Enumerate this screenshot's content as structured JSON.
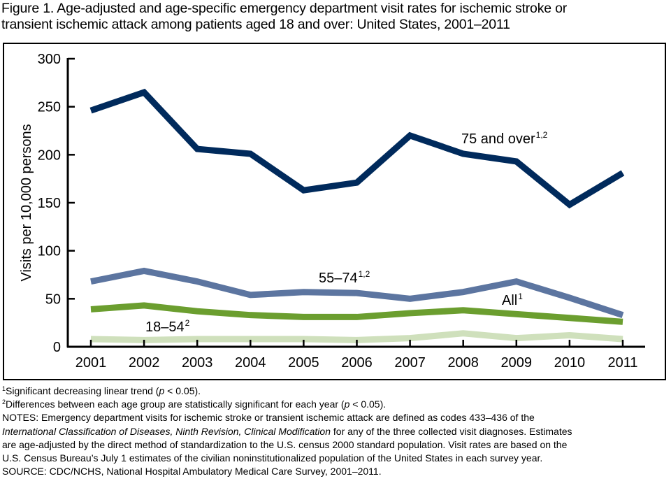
{
  "title": {
    "line1": "Figure 1. Age-adjusted and age-specific emergency department visit rates for ischemic stroke or",
    "line2": "transient ischemic attack among patients aged 18 and over: United States, 2001–2011"
  },
  "chart_data": {
    "type": "line",
    "title": "Figure 1. Age-adjusted and age-specific emergency department visit rates for ischemic stroke or transient ischemic attack among patients aged 18 and over: United States, 2001–2011",
    "xlabel": "",
    "ylabel": "Visits per 10,000 persons",
    "x": [
      "2001",
      "2002",
      "2003",
      "2004",
      "2005",
      "2006",
      "2007",
      "2008",
      "2009",
      "2010",
      "2011"
    ],
    "ylim": [
      0,
      300
    ],
    "yticks": [
      0,
      50,
      100,
      150,
      200,
      250,
      300
    ],
    "grid": false,
    "legend": "inline labels",
    "series": [
      {
        "name": "75 and over",
        "label": "75 and over",
        "label_sup": "1,2",
        "color": "#002A5C",
        "values": [
          246,
          265,
          206,
          201,
          163,
          171,
          220,
          201,
          193,
          148,
          181
        ]
      },
      {
        "name": "55–74",
        "label": "55–74",
        "label_sup": "1,2",
        "color": "#5C75A0",
        "values": [
          68,
          79,
          68,
          54,
          57,
          56,
          50,
          57,
          68,
          51,
          33
        ]
      },
      {
        "name": "All",
        "label": "All",
        "label_sup": "1",
        "color": "#6B9E2F",
        "values": [
          39,
          43,
          37,
          33,
          31,
          31,
          35,
          38,
          34,
          30,
          26
        ]
      },
      {
        "name": "18–54",
        "label": "18–54",
        "label_sup": "2",
        "color": "#CFE0BC",
        "values": [
          8,
          7,
          8,
          8,
          8,
          7,
          9,
          14,
          9,
          12,
          8
        ]
      }
    ]
  },
  "footnotes": {
    "fn1_mark": "1",
    "fn1_text_a": "Significant decreasing linear trend (",
    "fn1_p": "p",
    "fn1_text_b": " < 0.05).",
    "fn2_mark": "2",
    "fn2_text_a": "Differences between each age group are statistically significant for each year (",
    "fn2_p": "p",
    "fn2_text_b": " < 0.05).",
    "notes_line1": "NOTES: Emergency department visits for ischemic stroke or transient ischemic attack are defined as codes 433–436 of the",
    "notes_line2_italic": "International Classification of Diseases, Ninth Revision, Clinical Modification",
    "notes_line2_rest": " for any of the three collected visit diagnoses. Estimates",
    "notes_line3": "are age-adjusted by the direct method of standardization to the U.S. census 2000 standard population. Visit rates are based on the",
    "notes_line4": "U.S. Census Bureau’s July 1 estimates of the civilian noninstitutionalized population of the United States in each survey year.",
    "source": "SOURCE: CDC/NCHS, National Hospital Ambulatory Medical Care Survey, 2001–2011."
  }
}
